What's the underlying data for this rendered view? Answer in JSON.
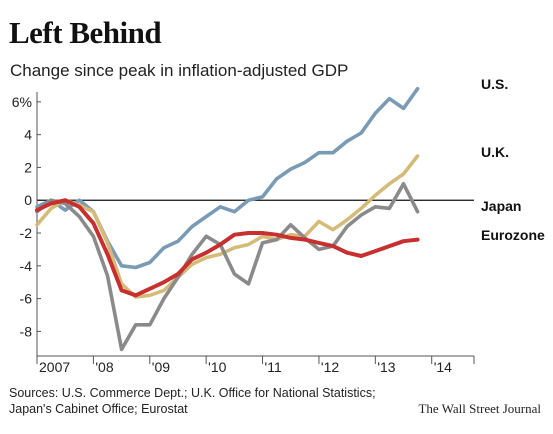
{
  "chart_data": {
    "type": "line",
    "title": "Left Behind",
    "subtitle": "Change since peak in inflation-adjusted GDP",
    "x_labels": [
      "2007",
      "'08",
      "'09",
      "'10",
      "'11",
      "'12",
      "'13",
      "'14"
    ],
    "x_start": 2007.0,
    "step": 0.25,
    "y_ticks": [
      -8,
      -6,
      -4,
      -2,
      0,
      2,
      4,
      6
    ],
    "y_tick_labels": [
      "-8",
      "-6",
      "-4",
      "-2",
      "0",
      "2",
      "4",
      "6%"
    ],
    "ylim": [
      -9.5,
      6.6
    ],
    "xlim": [
      2007.0,
      2014.75
    ],
    "series": [
      {
        "name": "U.S.",
        "color": "#7a9bb5",
        "values": [
          -0.4,
          0.0,
          -0.6,
          0.0,
          -0.7,
          -2.5,
          -4.0,
          -4.1,
          -3.8,
          -2.9,
          -2.5,
          -1.6,
          -1.0,
          -0.4,
          -0.7,
          0.0,
          0.2,
          1.3,
          1.9,
          2.3,
          2.9,
          2.9,
          3.6,
          4.1,
          5.3,
          6.2,
          5.6,
          6.8
        ]
      },
      {
        "name": "U.K.",
        "color": "#d4bb77",
        "values": [
          -1.5,
          -0.5,
          0.0,
          -0.3,
          -0.7,
          -2.6,
          -5.1,
          -5.9,
          -5.8,
          -5.5,
          -4.7,
          -3.9,
          -3.5,
          -3.3,
          -2.9,
          -2.7,
          -2.2,
          -2.4,
          -2.1,
          -2.2,
          -1.3,
          -1.8,
          -1.2,
          -0.5,
          0.3,
          1.0,
          1.6,
          2.7
        ]
      },
      {
        "name": "Japan",
        "color": "#8a8a8a",
        "values": [
          -0.7,
          0.0,
          -0.2,
          -1.0,
          -2.2,
          -4.6,
          -9.1,
          -7.6,
          -7.6,
          -6.0,
          -4.7,
          -3.3,
          -2.2,
          -2.7,
          -4.5,
          -5.1,
          -2.6,
          -2.4,
          -1.5,
          -2.3,
          -3.0,
          -2.8,
          -1.6,
          -0.9,
          -0.4,
          -0.5,
          1.0,
          -0.7
        ]
      },
      {
        "name": "Eurozone",
        "color": "#c8302f",
        "values": [
          -0.6,
          -0.2,
          0.0,
          -0.4,
          -1.4,
          -3.3,
          -5.5,
          -5.8,
          -5.4,
          -5.0,
          -4.5,
          -3.6,
          -3.2,
          -2.7,
          -2.1,
          -2.0,
          -2.0,
          -2.1,
          -2.3,
          -2.4,
          -2.6,
          -2.8,
          -3.2,
          -3.4,
          -3.1,
          -2.8,
          -2.5,
          -2.4
        ]
      }
    ],
    "grid": false,
    "legend": "labels at line ends"
  },
  "source_line_1": "Sources: U.S. Commerce Dept.; U.K. Office for National Statistics;",
  "source_line_2": "Japan's Cabinet Office; Eurostat",
  "credit": "The Wall Street Journal"
}
